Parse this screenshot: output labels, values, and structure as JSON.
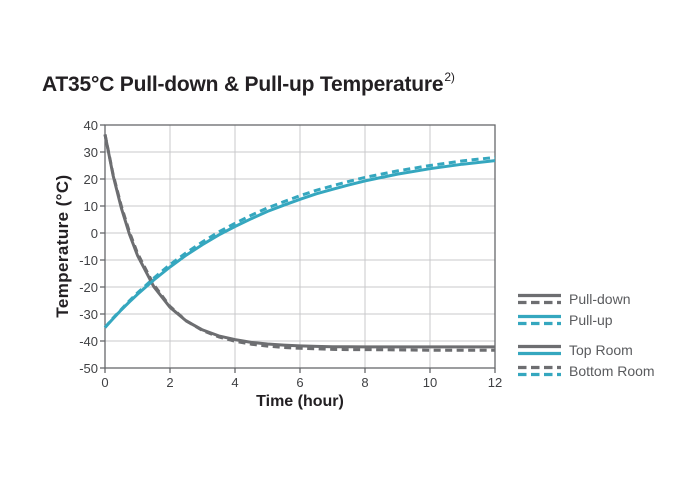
{
  "title": {
    "text": "AT35°C Pull-down & Pull-up Temperature",
    "superscript": "2)"
  },
  "colors": {
    "gray": "#6d6e71",
    "teal": "#35a7bf",
    "grid": "#c8c9cb",
    "frame": "#66686b",
    "tick_text": "#404144",
    "legend_text": "#5a5b5e",
    "title_text": "#232023"
  },
  "chart_data": {
    "type": "line",
    "title": "AT35°C Pull-down & Pull-up Temperature",
    "xlabel": "Time (hour)",
    "ylabel": "Temperature (°C)",
    "xlim": [
      0,
      12
    ],
    "ylim": [
      -50,
      40
    ],
    "x_ticks": [
      0,
      2,
      4,
      6,
      8,
      10,
      12
    ],
    "y_ticks": [
      40,
      30,
      20,
      10,
      0,
      -10,
      -20,
      -30,
      -40,
      -50
    ],
    "grid": true,
    "legend_position": "right",
    "x": [
      0,
      0.25,
      0.5,
      0.75,
      1,
      1.5,
      2,
      2.5,
      3,
      3.5,
      4,
      4.5,
      5,
      5.5,
      6,
      6.5,
      7,
      7.5,
      8,
      9,
      10,
      11,
      12
    ],
    "series": [
      {
        "name": "Pull-down (Top Room)",
        "color": "gray",
        "style": "solid",
        "values": [
          36.5,
          21.3,
          9.3,
          -0.4,
          -8.3,
          -19.9,
          -27.5,
          -32.6,
          -35.9,
          -38.1,
          -39.5,
          -40.5,
          -41.1,
          -41.5,
          -41.8,
          -42.0,
          -42.1,
          -42.1,
          -42.2,
          -42.2,
          -42.2,
          -42.2,
          -42.2
        ]
      },
      {
        "name": "Pull-down (Bottom Room)",
        "color": "gray",
        "style": "dashed",
        "values": [
          36.5,
          21.7,
          10.0,
          0.4,
          -7.5,
          -19.2,
          -27.2,
          -32.5,
          -36.1,
          -38.5,
          -40.1,
          -41.2,
          -41.9,
          -42.4,
          -42.7,
          -42.9,
          -43.1,
          -43.2,
          -43.2,
          -43.3,
          -43.4,
          -43.4,
          -43.4
        ]
      },
      {
        "name": "Pull-up (Top Room)",
        "color": "teal",
        "style": "solid",
        "values": [
          -35.0,
          -31.7,
          -28.5,
          -25.5,
          -22.7,
          -17.4,
          -12.6,
          -8.2,
          -4.3,
          -0.7,
          2.4,
          5.3,
          8.0,
          10.3,
          12.5,
          14.5,
          16.2,
          17.8,
          19.3,
          21.8,
          23.8,
          25.5,
          26.8
        ]
      },
      {
        "name": "Pull-up (Bottom Room)",
        "color": "teal",
        "style": "dashed",
        "values": [
          -35.0,
          -31.5,
          -28.3,
          -25.1,
          -22.2,
          -16.7,
          -11.7,
          -7.3,
          -3.3,
          0.4,
          3.6,
          6.6,
          9.3,
          11.6,
          13.8,
          15.8,
          17.5,
          19.1,
          20.6,
          23.0,
          25.0,
          26.7,
          28.0
        ]
      }
    ],
    "legend": [
      {
        "label": "Pull-down",
        "group_gap": false,
        "rows": [
          {
            "color": "gray",
            "style": "solid"
          },
          {
            "color": "gray",
            "style": "dashed"
          }
        ]
      },
      {
        "label": "Pull-up",
        "group_gap": false,
        "rows": [
          {
            "color": "teal",
            "style": "solid"
          },
          {
            "color": "teal",
            "style": "dashed"
          }
        ]
      },
      {
        "label": "Top Room",
        "group_gap": true,
        "rows": [
          {
            "color": "gray",
            "style": "solid"
          },
          {
            "color": "teal",
            "style": "solid"
          }
        ]
      },
      {
        "label": "Bottom Room",
        "group_gap": false,
        "rows": [
          {
            "color": "gray",
            "style": "dashed"
          },
          {
            "color": "teal",
            "style": "dashed"
          }
        ]
      }
    ]
  }
}
